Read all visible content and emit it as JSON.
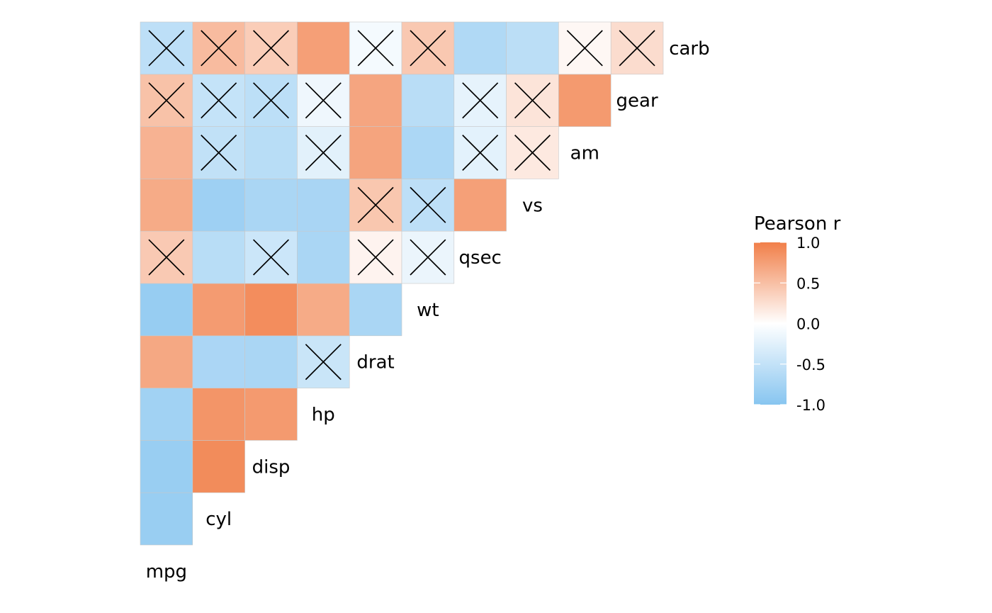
{
  "chart_data": {
    "type": "heatmap",
    "variables": [
      "mpg",
      "cyl",
      "disp",
      "hp",
      "drat",
      "wt",
      "qsec",
      "vs",
      "am",
      "gear",
      "carb"
    ],
    "legend": {
      "title": "Pearson r",
      "ticks": [
        1.0,
        0.5,
        0.0,
        -0.5,
        -1.0
      ],
      "tick_labels": [
        "1.0",
        "0.5",
        "0.0",
        "-0.5",
        "-1.0"
      ],
      "range": [
        -1,
        1
      ]
    },
    "colors": {
      "negative": "#87C5F0",
      "zero": "#FFFFFF",
      "positive": "#F17F49",
      "cell_border": "#C8C8C8",
      "cross": "#000000"
    },
    "cells": [
      {
        "x": "mpg",
        "y": "cyl",
        "r": -0.85,
        "nonsignificant": false
      },
      {
        "x": "mpg",
        "y": "disp",
        "r": -0.85,
        "nonsignificant": false
      },
      {
        "x": "cyl",
        "y": "disp",
        "r": 0.9,
        "nonsignificant": false
      },
      {
        "x": "mpg",
        "y": "hp",
        "r": -0.78,
        "nonsignificant": false
      },
      {
        "x": "cyl",
        "y": "hp",
        "r": 0.83,
        "nonsignificant": false
      },
      {
        "x": "disp",
        "y": "hp",
        "r": 0.79,
        "nonsignificant": false
      },
      {
        "x": "mpg",
        "y": "drat",
        "r": 0.68,
        "nonsignificant": false
      },
      {
        "x": "cyl",
        "y": "drat",
        "r": -0.7,
        "nonsignificant": false
      },
      {
        "x": "disp",
        "y": "drat",
        "r": -0.71,
        "nonsignificant": false
      },
      {
        "x": "hp",
        "y": "drat",
        "r": -0.45,
        "nonsignificant": true
      },
      {
        "x": "mpg",
        "y": "wt",
        "r": -0.87,
        "nonsignificant": false
      },
      {
        "x": "cyl",
        "y": "wt",
        "r": 0.78,
        "nonsignificant": false
      },
      {
        "x": "disp",
        "y": "wt",
        "r": 0.89,
        "nonsignificant": false
      },
      {
        "x": "hp",
        "y": "wt",
        "r": 0.66,
        "nonsignificant": false
      },
      {
        "x": "drat",
        "y": "wt",
        "r": -0.71,
        "nonsignificant": false
      },
      {
        "x": "mpg",
        "y": "qsec",
        "r": 0.42,
        "nonsignificant": true
      },
      {
        "x": "cyl",
        "y": "qsec",
        "r": -0.59,
        "nonsignificant": false
      },
      {
        "x": "disp",
        "y": "qsec",
        "r": -0.43,
        "nonsignificant": true
      },
      {
        "x": "hp",
        "y": "qsec",
        "r": -0.71,
        "nonsignificant": false
      },
      {
        "x": "drat",
        "y": "qsec",
        "r": 0.09,
        "nonsignificant": true
      },
      {
        "x": "wt",
        "y": "qsec",
        "r": -0.17,
        "nonsignificant": true
      },
      {
        "x": "mpg",
        "y": "vs",
        "r": 0.66,
        "nonsignificant": false
      },
      {
        "x": "cyl",
        "y": "vs",
        "r": -0.81,
        "nonsignificant": false
      },
      {
        "x": "disp",
        "y": "vs",
        "r": -0.71,
        "nonsignificant": false
      },
      {
        "x": "hp",
        "y": "vs",
        "r": -0.72,
        "nonsignificant": false
      },
      {
        "x": "drat",
        "y": "vs",
        "r": 0.44,
        "nonsignificant": true
      },
      {
        "x": "wt",
        "y": "vs",
        "r": -0.55,
        "nonsignificant": true
      },
      {
        "x": "qsec",
        "y": "vs",
        "r": 0.74,
        "nonsignificant": false
      },
      {
        "x": "mpg",
        "y": "am",
        "r": 0.6,
        "nonsignificant": false
      },
      {
        "x": "cyl",
        "y": "am",
        "r": -0.52,
        "nonsignificant": true
      },
      {
        "x": "disp",
        "y": "am",
        "r": -0.59,
        "nonsignificant": false
      },
      {
        "x": "hp",
        "y": "am",
        "r": -0.24,
        "nonsignificant": true
      },
      {
        "x": "drat",
        "y": "am",
        "r": 0.71,
        "nonsignificant": false
      },
      {
        "x": "wt",
        "y": "am",
        "r": -0.69,
        "nonsignificant": false
      },
      {
        "x": "qsec",
        "y": "am",
        "r": -0.23,
        "nonsignificant": true
      },
      {
        "x": "vs",
        "y": "am",
        "r": 0.17,
        "nonsignificant": true
      },
      {
        "x": "mpg",
        "y": "gear",
        "r": 0.48,
        "nonsignificant": true
      },
      {
        "x": "cyl",
        "y": "gear",
        "r": -0.49,
        "nonsignificant": true
      },
      {
        "x": "disp",
        "y": "gear",
        "r": -0.56,
        "nonsignificant": true
      },
      {
        "x": "hp",
        "y": "gear",
        "r": -0.13,
        "nonsignificant": true
      },
      {
        "x": "drat",
        "y": "gear",
        "r": 0.7,
        "nonsignificant": false
      },
      {
        "x": "wt",
        "y": "gear",
        "r": -0.58,
        "nonsignificant": false
      },
      {
        "x": "qsec",
        "y": "gear",
        "r": -0.21,
        "nonsignificant": true
      },
      {
        "x": "vs",
        "y": "gear",
        "r": 0.21,
        "nonsignificant": true
      },
      {
        "x": "am",
        "y": "gear",
        "r": 0.79,
        "nonsignificant": false
      },
      {
        "x": "mpg",
        "y": "carb",
        "r": -0.55,
        "nonsignificant": true
      },
      {
        "x": "cyl",
        "y": "carb",
        "r": 0.53,
        "nonsignificant": true
      },
      {
        "x": "disp",
        "y": "carb",
        "r": 0.39,
        "nonsignificant": true
      },
      {
        "x": "hp",
        "y": "carb",
        "r": 0.75,
        "nonsignificant": false
      },
      {
        "x": "drat",
        "y": "carb",
        "r": -0.09,
        "nonsignificant": true
      },
      {
        "x": "wt",
        "y": "carb",
        "r": 0.43,
        "nonsignificant": true
      },
      {
        "x": "qsec",
        "y": "carb",
        "r": -0.66,
        "nonsignificant": false
      },
      {
        "x": "vs",
        "y": "carb",
        "r": -0.57,
        "nonsignificant": false
      },
      {
        "x": "am",
        "y": "carb",
        "r": 0.06,
        "nonsignificant": true
      },
      {
        "x": "gear",
        "y": "carb",
        "r": 0.27,
        "nonsignificant": true
      }
    ]
  }
}
